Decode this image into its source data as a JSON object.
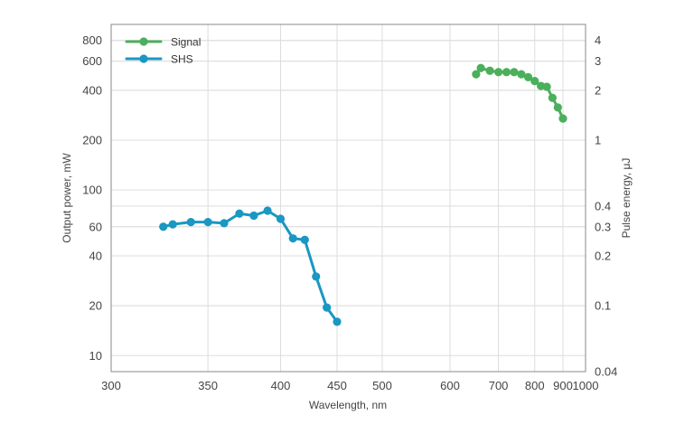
{
  "chart_data": {
    "type": "line",
    "title": "",
    "xlabel": "Wavelength, nm",
    "ylabel": "Output power, mW",
    "y2label": "Pulse energy, μJ",
    "x_scale": "reciprocal",
    "y_scale": "log",
    "xlim": [
      300,
      1000
    ],
    "ylim": [
      8,
      1000
    ],
    "y2lim": [
      0.04,
      5
    ],
    "grid": true,
    "legend_position": "top-left",
    "x_ticks": [
      300,
      350,
      400,
      450,
      500,
      600,
      700,
      800,
      900,
      1000
    ],
    "y_ticks": [
      10,
      20,
      40,
      60,
      100,
      200,
      400,
      600,
      800
    ],
    "y2_ticks": [
      0.04,
      0.1,
      0.2,
      0.3,
      0.4,
      1,
      2,
      3,
      4
    ],
    "y2_tick_labels": [
      "0.04",
      "0.1",
      "0.2",
      "0.3",
      "0.4",
      "1",
      "2",
      "3",
      "4"
    ],
    "colors": {
      "Signal": "#4caf5b",
      "SHS": "#1a97c3"
    },
    "series": [
      {
        "name": "Signal",
        "x": [
          650,
          660,
          680,
          700,
          720,
          740,
          760,
          780,
          800,
          820,
          840,
          860,
          880,
          900
        ],
        "y": [
          500,
          545,
          525,
          515,
          515,
          515,
          500,
          480,
          455,
          425,
          420,
          360,
          315,
          270
        ]
      },
      {
        "name": "SHS",
        "x": [
          325,
          330,
          340,
          350,
          360,
          370,
          380,
          390,
          400,
          410,
          420,
          430,
          440,
          450
        ],
        "y": [
          60,
          62,
          64,
          64,
          63,
          72,
          70,
          75,
          67,
          51,
          50,
          30,
          19.5,
          16
        ]
      }
    ]
  }
}
